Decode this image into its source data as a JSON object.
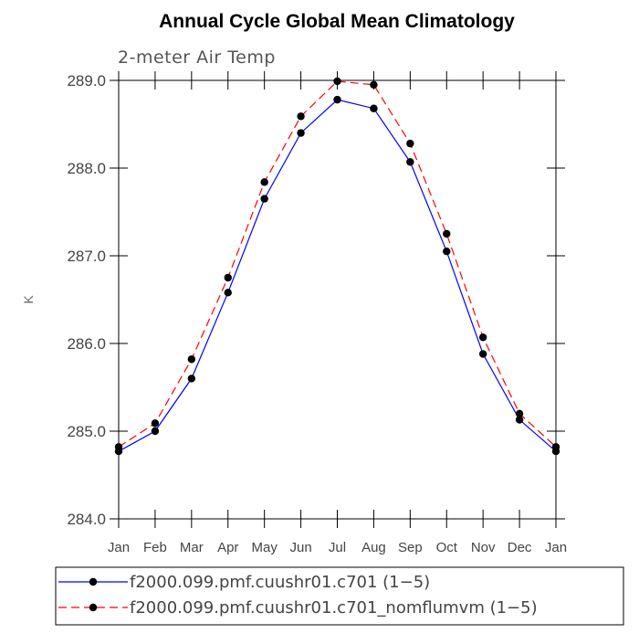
{
  "chart_data": {
    "type": "line",
    "title": "Annual Cycle Global Mean Climatology",
    "subtitle": "2-meter Air Temp",
    "xlabel": "",
    "ylabel": "K",
    "ylim": [
      284.0,
      289.0
    ],
    "yticks": [
      "284.0",
      "285.0",
      "286.0",
      "287.0",
      "288.0",
      "289.0"
    ],
    "categories": [
      "Jan",
      "Feb",
      "Mar",
      "Apr",
      "May",
      "Jun",
      "Jul",
      "Aug",
      "Sep",
      "Oct",
      "Nov",
      "Dec",
      "Jan"
    ],
    "series": [
      {
        "name": "f2000.099.pmf.cuushr01.c701 (1−5)",
        "color": "#0000ff",
        "dash": "solid",
        "values": [
          284.77,
          285.0,
          285.6,
          286.58,
          287.65,
          288.4,
          288.78,
          288.68,
          288.07,
          287.05,
          285.88,
          285.13,
          284.77
        ]
      },
      {
        "name": "f2000.099.pmf.cuushr01.c701_nomflumvm (1−5)",
        "color": "#ff0000",
        "dash": "dashed",
        "values": [
          284.82,
          285.09,
          285.82,
          286.75,
          287.84,
          288.59,
          288.99,
          288.95,
          288.28,
          287.25,
          286.07,
          285.2,
          284.82
        ]
      }
    ],
    "grid": false,
    "legend_position": "bottom"
  }
}
